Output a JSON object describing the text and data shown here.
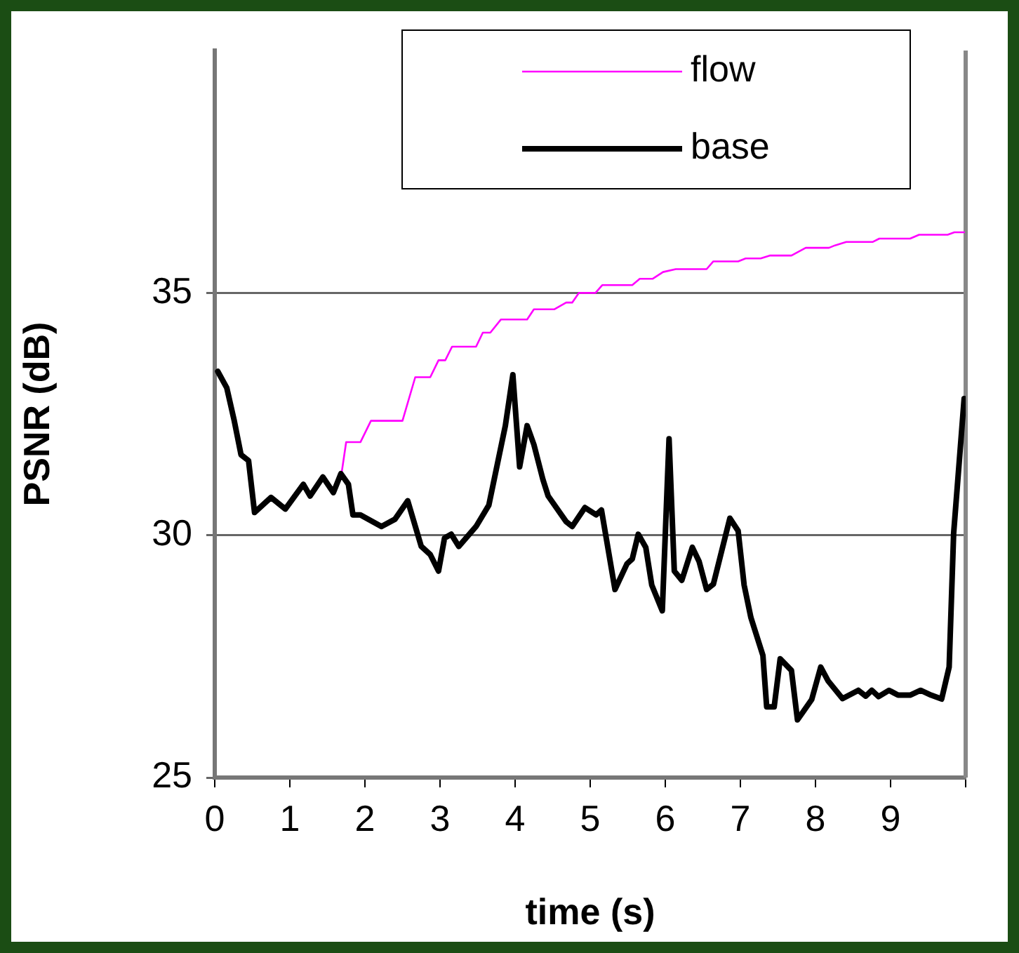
{
  "chart_data": {
    "type": "line",
    "xlabel": "time (s)",
    "ylabel": "PSNR (dB)",
    "xlim": [
      0,
      10
    ],
    "xticks": [
      0,
      1,
      2,
      3,
      4,
      5,
      6,
      7,
      8,
      9,
      {
        "value": 10,
        "label": null
      }
    ],
    "ylim": [
      25,
      40
    ],
    "yticks": [
      25,
      30,
      35
    ],
    "grid": "y",
    "legend": "top right",
    "marker": "none",
    "line_style": "solid",
    "series": [
      {
        "name": "flow",
        "color": "#ff00ff",
        "x": [
          1.69,
          1.75,
          1.94,
          2.08,
          2.5,
          2.67,
          2.87,
          2.98,
          3.07,
          3.16,
          3.48,
          3.57,
          3.67,
          3.81,
          4.16,
          4.25,
          4.52,
          4.68,
          4.76,
          4.85,
          5.07,
          5.16,
          5.56,
          5.66,
          5.83,
          5.97,
          6.14,
          6.55,
          6.64,
          6.97,
          7.07,
          7.27,
          7.39,
          7.68,
          7.87,
          8.18,
          8.26,
          8.41,
          8.76,
          8.85,
          9.26,
          9.38,
          9.76,
          9.85,
          9.98
        ],
        "values": [
          31.29,
          31.92,
          31.92,
          32.36,
          32.36,
          33.26,
          33.26,
          33.61,
          33.61,
          33.89,
          33.89,
          34.18,
          34.18,
          34.45,
          34.45,
          34.66,
          34.66,
          34.8,
          34.8,
          35.0,
          35.0,
          35.16,
          35.16,
          35.29,
          35.29,
          35.43,
          35.49,
          35.49,
          35.65,
          35.65,
          35.71,
          35.71,
          35.77,
          35.77,
          35.93,
          35.93,
          35.98,
          36.05,
          36.05,
          36.12,
          36.12,
          36.2,
          36.2,
          36.25,
          36.25
        ]
      },
      {
        "name": "base",
        "color": "#000000",
        "x": [
          0.04,
          0.16,
          0.26,
          0.35,
          0.45,
          0.53,
          0.75,
          0.94,
          1.18,
          1.27,
          1.44,
          1.58,
          1.68,
          1.78,
          1.84,
          1.94,
          2.22,
          2.4,
          2.57,
          2.75,
          2.87,
          2.98,
          3.06,
          3.15,
          3.25,
          3.48,
          3.65,
          3.87,
          3.97,
          4.06,
          4.16,
          4.25,
          4.37,
          4.44,
          4.68,
          4.76,
          4.93,
          5.08,
          5.15,
          5.33,
          5.49,
          5.56,
          5.64,
          5.74,
          5.82,
          5.96,
          6.05,
          6.12,
          6.22,
          6.36,
          6.45,
          6.55,
          6.64,
          6.86,
          6.97,
          7.05,
          7.14,
          7.3,
          7.35,
          7.45,
          7.53,
          7.68,
          7.76,
          7.95,
          8.07,
          8.17,
          8.36,
          8.57,
          8.67,
          8.75,
          8.84,
          8.98,
          9.1,
          9.26,
          9.4,
          9.54,
          9.68,
          9.78,
          9.84,
          9.98
        ],
        "values": [
          33.38,
          33.04,
          32.36,
          31.66,
          31.54,
          30.47,
          30.78,
          30.54,
          31.05,
          30.81,
          31.2,
          30.88,
          31.27,
          31.05,
          30.42,
          30.42,
          30.18,
          30.33,
          30.71,
          29.77,
          29.6,
          29.26,
          29.94,
          30.02,
          29.77,
          30.18,
          30.62,
          32.26,
          33.31,
          31.41,
          32.26,
          31.87,
          31.15,
          30.81,
          30.28,
          30.18,
          30.57,
          30.42,
          30.52,
          28.88,
          29.41,
          29.51,
          30.02,
          29.75,
          28.97,
          28.44,
          31.99,
          29.26,
          29.07,
          29.75,
          29.46,
          28.88,
          28.99,
          30.35,
          30.09,
          28.97,
          28.3,
          27.52,
          26.46,
          26.46,
          27.45,
          27.21,
          26.19,
          26.61,
          27.28,
          26.99,
          26.63,
          26.8,
          26.68,
          26.8,
          26.67,
          26.8,
          26.7,
          26.7,
          26.8,
          26.7,
          26.62,
          27.28,
          30.04,
          32.82
        ]
      }
    ]
  }
}
